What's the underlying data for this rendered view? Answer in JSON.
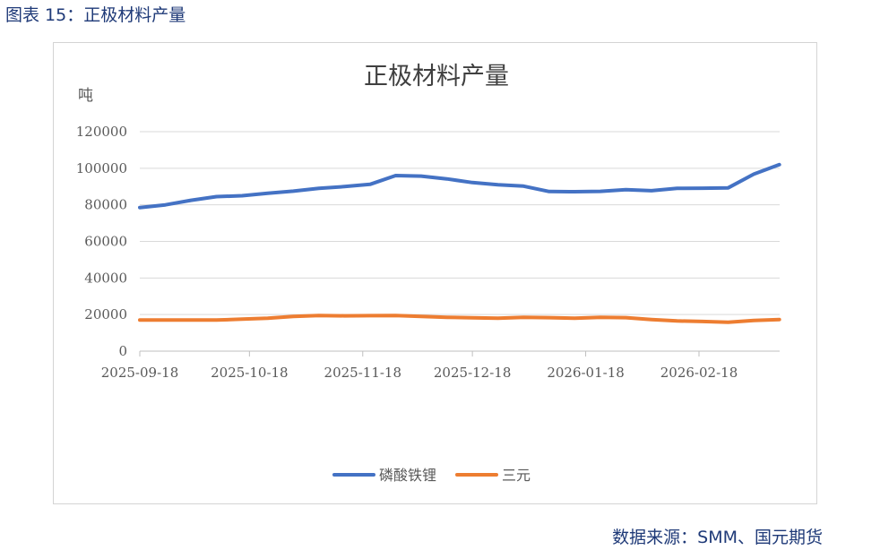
{
  "caption": "图表 15：正极材料产量",
  "source": "数据来源：SMM、国元期货",
  "colors": {
    "lfp": "#4472c4",
    "ternary": "#ed7d31",
    "grid": "#d9d9d9",
    "axis": "#bfbfbf",
    "text": "#595959"
  },
  "chart_data": {
    "type": "line",
    "title": "正极材料产量",
    "ylabel": "吨",
    "xlabel": "",
    "ylim": [
      0,
      120000
    ],
    "yticks": [
      0,
      20000,
      40000,
      60000,
      80000,
      100000,
      120000
    ],
    "x_ticks": [
      "2025-09-18",
      "2025-10-18",
      "2025-11-18",
      "2025-12-18",
      "2026-01-18",
      "2026-02-18"
    ],
    "x": [
      "2025-09-18",
      "2025-09-25",
      "2025-10-02",
      "2025-10-09",
      "2025-10-16",
      "2025-10-23",
      "2025-10-30",
      "2025-11-06",
      "2025-11-13",
      "2025-11-20",
      "2025-11-27",
      "2025-12-04",
      "2025-12-11",
      "2025-12-18",
      "2025-12-25",
      "2026-01-01",
      "2026-01-08",
      "2026-01-15",
      "2026-01-22",
      "2026-01-29",
      "2026-02-05",
      "2026-02-12",
      "2026-02-19",
      "2026-02-26",
      "2026-03-05",
      "2026-03-12"
    ],
    "series": [
      {
        "name": "磷酸铁锂",
        "color": "#4472c4",
        "values": [
          78500,
          80000,
          82500,
          84500,
          85000,
          86300,
          87500,
          89000,
          90000,
          91200,
          96000,
          95700,
          94200,
          92200,
          91000,
          90200,
          87300,
          87200,
          87400,
          88300,
          87700,
          89000,
          89100,
          89300,
          96800,
          102000
        ]
      },
      {
        "name": "三元",
        "color": "#ed7d31",
        "values": [
          17000,
          17000,
          17000,
          17000,
          17500,
          18000,
          19000,
          19500,
          19300,
          19400,
          19500,
          19000,
          18500,
          18200,
          18000,
          18500,
          18300,
          18000,
          18500,
          18300,
          17300,
          16500,
          16200,
          15800,
          16800,
          17300
        ]
      }
    ],
    "grid": true,
    "legend": "bottom"
  }
}
